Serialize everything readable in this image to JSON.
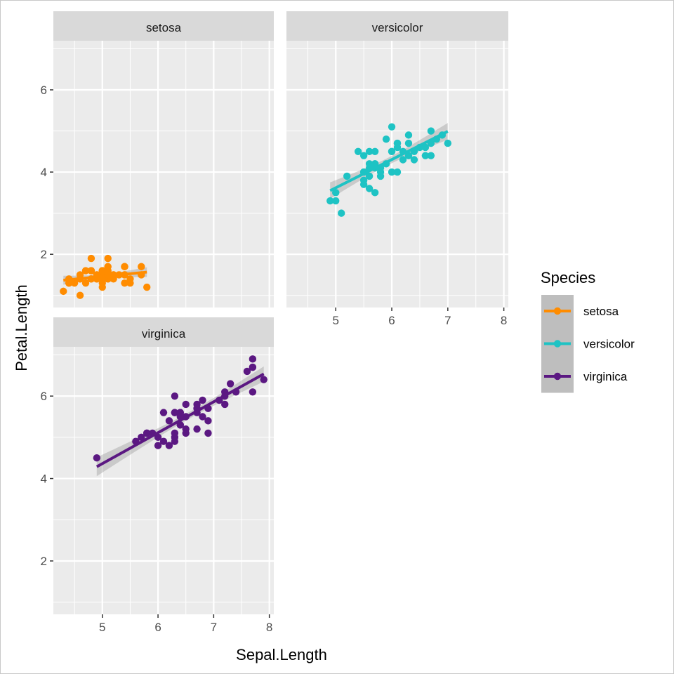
{
  "chart_data": {
    "type": "scatter",
    "facet_by": "Species",
    "xlabel": "Sepal.Length",
    "ylabel": "Petal.Length",
    "xlim": [
      4.12,
      8.08
    ],
    "ylim": [
      0.705,
      7.195
    ],
    "x_ticks": [
      5,
      6,
      7,
      8
    ],
    "y_ticks": [
      2,
      4,
      6
    ],
    "grid": true,
    "smooth": "lm with 95% confidence band",
    "legend": {
      "title": "Species",
      "placement": "right"
    },
    "series": [
      {
        "name": "setosa",
        "color": "#FF8C00",
        "x": [
          5.1,
          4.9,
          4.7,
          4.6,
          5.0,
          5.4,
          4.6,
          5.0,
          4.4,
          4.9,
          5.4,
          4.8,
          4.8,
          4.3,
          5.8,
          5.7,
          5.4,
          5.1,
          5.7,
          5.1,
          5.4,
          5.1,
          4.6,
          5.1,
          4.8,
          5.0,
          5.0,
          5.2,
          5.2,
          4.7,
          4.8,
          5.4,
          5.2,
          5.5,
          4.9,
          5.0,
          5.5,
          4.9,
          4.4,
          5.1,
          5.0,
          4.5,
          4.4,
          5.0,
          5.1,
          4.8,
          5.1,
          4.6,
          5.3,
          5.0
        ],
        "y": [
          1.4,
          1.4,
          1.3,
          1.5,
          1.4,
          1.7,
          1.4,
          1.5,
          1.4,
          1.5,
          1.5,
          1.6,
          1.4,
          1.1,
          1.2,
          1.5,
          1.3,
          1.4,
          1.7,
          1.5,
          1.7,
          1.5,
          1.0,
          1.7,
          1.9,
          1.6,
          1.6,
          1.5,
          1.4,
          1.6,
          1.6,
          1.5,
          1.5,
          1.4,
          1.5,
          1.2,
          1.3,
          1.4,
          1.3,
          1.5,
          1.3,
          1.3,
          1.3,
          1.6,
          1.9,
          1.4,
          1.6,
          1.4,
          1.5,
          1.4
        ]
      },
      {
        "name": "versicolor",
        "color": "#1EC3C4",
        "x": [
          7.0,
          6.4,
          6.9,
          5.5,
          6.5,
          5.7,
          6.3,
          4.9,
          6.6,
          5.2,
          5.0,
          5.9,
          6.0,
          6.1,
          5.6,
          6.7,
          5.6,
          5.8,
          6.2,
          5.6,
          5.9,
          6.1,
          6.3,
          6.1,
          6.4,
          6.6,
          6.8,
          6.7,
          6.0,
          5.7,
          5.5,
          5.5,
          5.8,
          6.0,
          5.4,
          6.0,
          6.7,
          6.3,
          5.6,
          5.5,
          5.5,
          6.1,
          5.8,
          5.0,
          5.6,
          5.7,
          5.7,
          6.2,
          5.1,
          5.7
        ],
        "y": [
          4.7,
          4.5,
          4.9,
          4.0,
          4.6,
          4.5,
          4.7,
          3.3,
          4.6,
          3.9,
          3.5,
          4.2,
          4.0,
          4.7,
          3.6,
          4.4,
          4.5,
          4.1,
          4.5,
          3.9,
          4.8,
          4.0,
          4.9,
          4.7,
          4.3,
          4.4,
          4.8,
          5.0,
          4.5,
          3.5,
          3.8,
          3.7,
          3.9,
          5.1,
          4.5,
          4.5,
          4.7,
          4.4,
          4.1,
          4.0,
          4.4,
          4.6,
          4.0,
          3.3,
          4.2,
          4.2,
          4.2,
          4.3,
          3.0,
          4.1
        ]
      },
      {
        "name": "virginica",
        "color": "#5B1882",
        "x": [
          6.3,
          5.8,
          7.1,
          6.3,
          6.5,
          7.6,
          4.9,
          7.3,
          6.7,
          7.2,
          6.5,
          6.4,
          6.8,
          5.7,
          5.8,
          6.4,
          6.5,
          7.7,
          7.7,
          6.0,
          6.9,
          5.6,
          7.7,
          6.3,
          6.7,
          7.2,
          6.2,
          6.1,
          6.4,
          7.2,
          7.4,
          7.9,
          6.4,
          6.3,
          6.1,
          7.7,
          6.3,
          6.4,
          6.0,
          6.9,
          6.7,
          6.9,
          5.8,
          6.8,
          6.7,
          6.7,
          6.3,
          6.5,
          6.2,
          5.9
        ],
        "y": [
          6.0,
          5.1,
          5.9,
          5.6,
          5.8,
          6.6,
          4.5,
          6.3,
          5.8,
          6.1,
          5.1,
          5.3,
          5.5,
          5.0,
          5.1,
          5.3,
          5.5,
          6.7,
          6.9,
          5.0,
          5.7,
          4.9,
          6.7,
          4.9,
          5.7,
          6.0,
          4.8,
          4.9,
          5.6,
          5.8,
          6.1,
          6.4,
          5.6,
          5.1,
          5.6,
          6.1,
          5.6,
          5.5,
          4.8,
          5.4,
          5.6,
          5.1,
          5.1,
          5.9,
          5.7,
          5.2,
          5.0,
          5.2,
          5.4,
          5.1
        ]
      }
    ]
  }
}
